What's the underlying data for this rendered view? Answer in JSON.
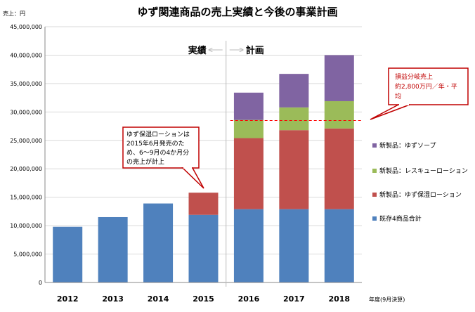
{
  "chart_data": {
    "type": "bar",
    "stacked": true,
    "title": "ゆず関連商品の売上実績と今後の事業計画",
    "ylabel": "売上：円",
    "xlabel": "年度(9月決算)",
    "ylim": [
      0,
      45000000
    ],
    "ytick_step": 5000000,
    "grid": true,
    "categories": [
      "2012",
      "2013",
      "2014",
      "2015",
      "2016",
      "2017",
      "2018"
    ],
    "series": [
      {
        "name": "既存4商品合計",
        "color": "#4f81bd",
        "values": [
          9800000,
          11500000,
          13900000,
          11900000,
          12900000,
          12900000,
          12900000
        ]
      },
      {
        "name": "新製品：ゆず保湿ローション",
        "color": "#c0504d",
        "values": [
          0,
          0,
          0,
          3900000,
          12500000,
          13900000,
          14200000
        ]
      },
      {
        "name": "新製品：レスキューローション",
        "color": "#9bbb59",
        "values": [
          0,
          0,
          0,
          0,
          3200000,
          4000000,
          4800000
        ]
      },
      {
        "name": "新製品：ゆずソープ",
        "color": "#8064a2",
        "values": [
          0,
          0,
          0,
          0,
          4800000,
          5900000,
          8100000
        ]
      }
    ],
    "legend_order": [
      3,
      2,
      1,
      0
    ],
    "legend_position": "right",
    "phase_labels": {
      "actual": "実績",
      "plan": "計画",
      "split_between": [
        "2015",
        "2016"
      ]
    },
    "breakeven": {
      "value": 28500000,
      "label_lines": [
        "損益分岐売上",
        "約2,800万円／年・平",
        "均"
      ]
    },
    "annotation_2015": {
      "lines": [
        "ゆず保湿ローションは",
        "2015年6月発売のた",
        "め、6～9月の4か月分",
        "の売上が計上"
      ]
    }
  }
}
